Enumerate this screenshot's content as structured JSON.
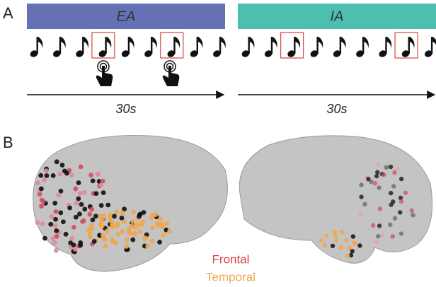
{
  "panel_a": {
    "label": "A",
    "conditions": [
      {
        "name": "EA",
        "duration": "30s"
      },
      {
        "name": "IA",
        "duration": "30s"
      }
    ]
  },
  "panel_b": {
    "label": "B",
    "legend": [
      "Frontal",
      "Temporal"
    ]
  }
}
